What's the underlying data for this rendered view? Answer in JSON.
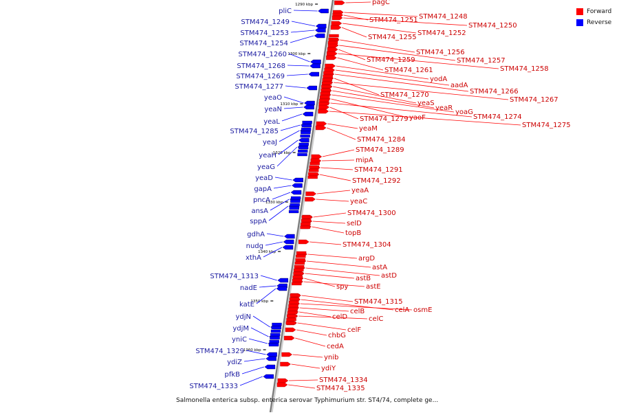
{
  "legend": {
    "forward_label": "Forward",
    "reverse_label": "Reverse",
    "forward_color": "#ff0000",
    "reverse_color": "#0000ff"
  },
  "caption": "Salmonella enterica subsp. enterica serovar Typhimurium str. ST4/74, complete ge...",
  "ticks": [
    "1290 kbp",
    "1300 kbp",
    "1310 kbp",
    "1320 kbp",
    "1330 kbp",
    "1340 kbp",
    "1350 kbp",
    "1360 kbp"
  ],
  "forward_genes": [
    "pagC",
    "STM474_1248",
    "STM474_1251",
    "STM474_1250",
    "STM474_1252",
    "STM474_1255",
    "STM474_1256",
    "STM474_1257",
    "STM474_1259",
    "STM474_1258",
    "STM474_1261",
    "yodA",
    "aadA",
    "STM474_1266",
    "STM474_1270",
    "STM474_1267",
    "yeaS",
    "yeaR",
    "yoaG",
    "yaoF",
    "STM474_1274",
    "STM474_1279",
    "STM474_1275",
    "yeaM",
    "STM474_1284",
    "STM474_1289",
    "mipA",
    "STM474_1291",
    "STM474_1292",
    "yeaA",
    "yeaC",
    "STM474_1300",
    "selD",
    "topB",
    "STM474_1304",
    "argD",
    "astA",
    "astD",
    "astB",
    "spy",
    "astE",
    "STM474_1315",
    "celA",
    "osmE",
    "celB",
    "celD",
    "celC",
    "celF",
    "chbG",
    "cedA",
    "ynib",
    "ydiY",
    "STM474_1334",
    "STM474_1335"
  ],
  "reverse_genes": [
    "pliC",
    "STM474_1249",
    "STM474_1253",
    "STM474_1254",
    "STM474_1260",
    "STM474_1268",
    "STM474_1269",
    "STM474_1277",
    "yeaO",
    "yeaN",
    "yeaL",
    "STM474_1285",
    "yeaJ",
    "yeaH",
    "yeaG",
    "yeaD",
    "gapA",
    "pncA",
    "ansA",
    "sppA",
    "gdhA",
    "nudg",
    "xthA",
    "STM474_1313",
    "nadE",
    "katE",
    "ydjN",
    "ydjM",
    "yniC",
    "STM474_1329",
    "ydiZ",
    "pfkB",
    "STM474_1333"
  ]
}
